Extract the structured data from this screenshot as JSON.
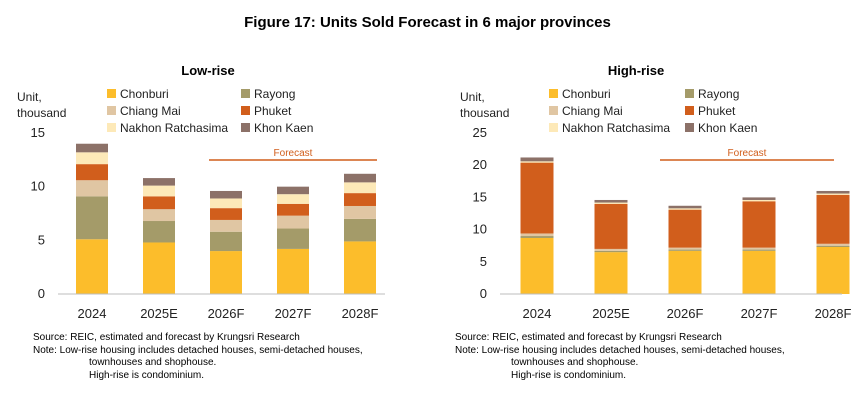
{
  "figure_title": "Figure 17: Units Sold Forecast in 6 major provinces",
  "colors": {
    "Chonburi": "#fcbd2b",
    "Rayong": "#a49b69",
    "Chiang Mai": "#e0c6a3",
    "Phuket": "#d15e1c",
    "Nakhon Ratchasima": "#fde9b8",
    "Khon Kaen": "#8c7168",
    "forecast_line": "#d15e1c",
    "forecast_text": "#d15e1c"
  },
  "chart_data": [
    {
      "type": "bar",
      "stacked": true,
      "title": "Low-rise",
      "ylabel": "Unit, thousand",
      "ylabel_lines": [
        "Unit,",
        "thousand"
      ],
      "ylim": [
        0,
        15
      ],
      "yticks": [
        0,
        5,
        10,
        15
      ],
      "categories": [
        "2024",
        "2025E",
        "2026F",
        "2027F",
        "2028F"
      ],
      "forecast_label": "Forecast",
      "series": [
        {
          "name": "Chonburi",
          "values": [
            5.1,
            4.8,
            4.0,
            4.2,
            4.9
          ]
        },
        {
          "name": "Rayong",
          "values": [
            4.0,
            2.0,
            1.8,
            1.9,
            2.1
          ]
        },
        {
          "name": "Chiang Mai",
          "values": [
            1.5,
            1.1,
            1.1,
            1.2,
            1.2
          ]
        },
        {
          "name": "Phuket",
          "values": [
            1.5,
            1.2,
            1.1,
            1.1,
            1.2
          ]
        },
        {
          "name": "Nakhon Ratchasima",
          "values": [
            1.1,
            1.0,
            0.9,
            0.9,
            1.0
          ]
        },
        {
          "name": "Khon Kaen",
          "values": [
            0.8,
            0.7,
            0.7,
            0.7,
            0.8
          ]
        }
      ]
    },
    {
      "type": "bar",
      "stacked": true,
      "title": "High-rise",
      "ylabel": "Unit, thousand",
      "ylabel_lines": [
        "Unit,",
        "thousand"
      ],
      "ylim": [
        0,
        25
      ],
      "yticks": [
        0,
        5,
        10,
        15,
        20,
        25
      ],
      "categories": [
        "2024",
        "2025E",
        "2026F",
        "2027F",
        "2028F"
      ],
      "forecast_label": "Forecast",
      "series": [
        {
          "name": "Chonburi",
          "values": [
            8.7,
            6.5,
            6.7,
            6.7,
            7.3
          ]
        },
        {
          "name": "Rayong",
          "values": [
            0.3,
            0.2,
            0.2,
            0.2,
            0.2
          ]
        },
        {
          "name": "Chiang Mai",
          "values": [
            0.4,
            0.3,
            0.3,
            0.3,
            0.3
          ]
        },
        {
          "name": "Phuket",
          "values": [
            11.0,
            7.0,
            5.9,
            7.2,
            7.6
          ]
        },
        {
          "name": "Nakhon Ratchasima",
          "values": [
            0.2,
            0.2,
            0.2,
            0.2,
            0.2
          ]
        },
        {
          "name": "Khon Kaen",
          "values": [
            0.6,
            0.4,
            0.4,
            0.4,
            0.4
          ]
        }
      ]
    }
  ],
  "notes": {
    "left": {
      "source": "Source: REIC, estimated and forecast by Krungsri Research",
      "note_line1": "Note: Low-rise housing  includes detached houses, semi-detached houses,",
      "note_line2": "townhouses and shophouse.",
      "note_line3": "High-rise is condominium."
    },
    "right": {
      "source": "Source: REIC, estimated and forecast by Krungsri Research",
      "note_line1": "Note: Low-rise housing  includes detached houses, semi-detached houses,",
      "note_line2": "townhouses and shophouse.",
      "note_line3": "High-rise is condominium."
    }
  }
}
